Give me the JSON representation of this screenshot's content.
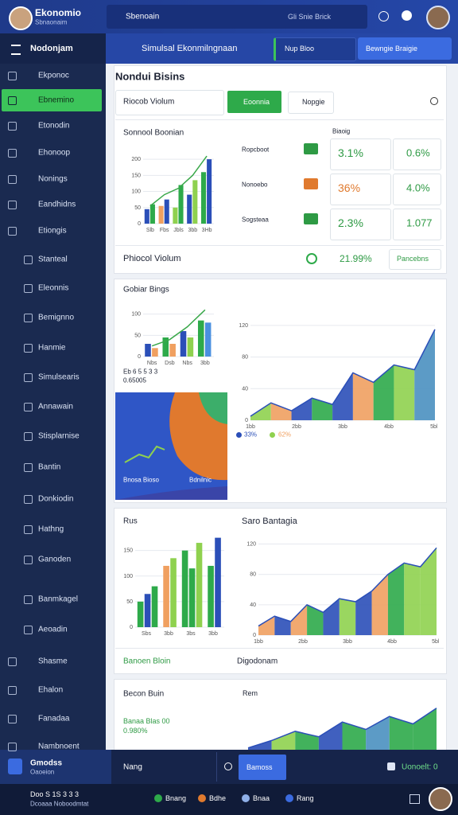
{
  "header": {
    "app_name": "Ekonomio",
    "app_sub": "Sbnaonaim",
    "search": "Sbenoain",
    "search_hint": "Gli Snie Brick"
  },
  "toolbar": {
    "menu": "Nodonjam",
    "title": "Simulsal Ekonmilngnaan",
    "button1": "Nup Bloo",
    "button2": "Bewngie Braigie"
  },
  "sidebar": {
    "items": [
      "Ekponoc",
      "Ebnemino",
      "Etonodin",
      "Ehonoop",
      "Nonings",
      "Eandhidns",
      "Etiongis",
      "Stanteal",
      "Eleonnis",
      "Bemignno",
      "Hanmie",
      "Simulsearis",
      "Annawain",
      "Stisplarnise",
      "Bantin",
      "Donkiodin",
      "Hathng",
      "Ganoden",
      "Banmkagel",
      "Aeoadin",
      "Shasme",
      "Ehalon",
      "Fanadaa",
      "Nambnoent"
    ]
  },
  "card1": {
    "title": "Nondui Bisins",
    "tab": "Riocob Violum",
    "button": "Eoonnia",
    "button2": "Nopgie",
    "chart_title": "Sonnool Boonian",
    "metrics_header": "Biaoig",
    "metrics": [
      {
        "label": "Ropcboot",
        "v1": "3.1%",
        "v2": "0.6%"
      },
      {
        "label": "Nonoebo",
        "v1": "36%",
        "v2": "4.0%"
      },
      {
        "label": "Sogsteaa",
        "v1": "2.3%",
        "v2": "1.077"
      }
    ],
    "footer": "Phiocol Violum",
    "footer_value": "21.99%",
    "footer_button": "Pancebns"
  },
  "card2": {
    "title": "Gobiar Bings",
    "note1": "Eb 6 5 5 3 3",
    "note2": "0.65005",
    "block1": "Bnosa Bioso",
    "block2": "Bdnilnic",
    "legend": [
      "33%",
      "62%"
    ]
  },
  "card3": {
    "title": "Rus",
    "title2": "Saro Bantagia",
    "footer1": "Banoen Bloin",
    "footer2": "Digodonam"
  },
  "card4": {
    "title": "Becon Buin",
    "title2": "Rem",
    "line1": "Banaa Blas 00",
    "line2": "0.980%"
  },
  "bottom": {
    "name": "Gmodss",
    "sub": "Oaoeion",
    "field": "Nang",
    "button": "Bamoss",
    "status": "Uonoelt: 0",
    "line1": "Doo S 1S 3 3 3",
    "line2": "Dcoaaa Noboodmtat",
    "tabs": [
      "Bnang",
      "Bdhe",
      "Bnaa",
      "Rang"
    ]
  },
  "charts": [
    {
      "type": "bar",
      "categories": [
        "Slb",
        "Fbs",
        "Jbls",
        "3bb",
        "3Hb"
      ],
      "values": [
        45,
        60,
        55,
        75,
        50,
        120,
        90,
        135,
        160,
        200
      ],
      "colors": [
        "#2b4fb8",
        "#2eaa4a",
        "#f0a060",
        "#2b4fb8",
        "#8fd14f",
        "#2eaa4a",
        "#2b4fb8",
        "#8fd14f",
        "#2eaa4a",
        "#2b4fb8"
      ],
      "line": [
        55,
        90,
        110,
        150,
        210
      ],
      "ylim": [
        0,
        220
      ],
      "yticks": [
        0,
        50,
        100,
        150,
        200
      ]
    },
    {
      "type": "bar",
      "categories": [
        "Nbs",
        "Dsb",
        "Nbs",
        "3bb"
      ],
      "values": [
        30,
        20,
        45,
        30,
        60,
        45,
        85,
        80
      ],
      "colors": [
        "#2b4fb8",
        "#f0a060",
        "#2eaa4a",
        "#f0a060",
        "#2b4fb8",
        "#8fd14f",
        "#2eaa4a",
        "#4a90e0"
      ],
      "line": [
        25,
        40,
        70,
        110
      ],
      "ylim": [
        0,
        120
      ],
      "yticks": [
        0,
        50,
        100
      ]
    },
    {
      "type": "area",
      "categories": [
        "1bb",
        "2bb",
        "3bb",
        "4bb",
        "5bb"
      ],
      "values": [
        5,
        22,
        12,
        28,
        20,
        60,
        48,
        70,
        64,
        115
      ],
      "colors": [
        "#8fd14f",
        "#f0a060",
        "#2b4fb8",
        "#2eaa4a",
        "#2b4fb8",
        "#f0a060",
        "#2eaa4a",
        "#8fd14f",
        "#4a90c0"
      ],
      "ylim": [
        0,
        130
      ],
      "yticks": [
        0,
        40,
        80,
        120
      ]
    },
    {
      "type": "bar",
      "categories": [
        "Sbs",
        "3bb",
        "3bs",
        "3bb"
      ],
      "values": [
        50,
        65,
        80,
        120,
        135,
        150,
        115,
        165,
        120,
        175
      ],
      "colors": [
        "#2eaa4a",
        "#2b4fb8",
        "#2eaa4a",
        "#f0a060",
        "#8fd14f",
        "#2eaa4a",
        "#2eaa4a",
        "#8fd14f",
        "#2eaa4a",
        "#2b4fb8"
      ],
      "ylim": [
        0,
        190
      ],
      "yticks": [
        0,
        50,
        100,
        150
      ]
    },
    {
      "type": "area",
      "categories": [
        "1bb",
        "2bb",
        "3bb",
        "4bb",
        "5bb"
      ],
      "values": [
        12,
        25,
        18,
        40,
        30,
        48,
        44,
        58,
        80,
        95,
        90,
        115
      ],
      "colors": [
        "#f0a060",
        "#2b4fb8",
        "#f0a060",
        "#2eaa4a",
        "#2b4fb8",
        "#8fd14f",
        "#2b4fb8",
        "#f0a060",
        "#2eaa4a",
        "#8fd14f",
        "#8fd14f"
      ],
      "ylim": [
        0,
        130
      ],
      "yticks": [
        0,
        40,
        80,
        120
      ]
    },
    {
      "type": "area",
      "categories": [],
      "values": [
        2,
        10,
        20,
        14,
        30,
        22,
        36,
        28,
        45
      ],
      "colors": [
        "#2b4fb8",
        "#8fd14f",
        "#2eaa4a",
        "#2b4fb8",
        "#2eaa4a",
        "#4a90c0",
        "#2eaa4a",
        "#2eaa4a"
      ],
      "ylim": [
        0,
        50
      ],
      "yticks": []
    }
  ]
}
